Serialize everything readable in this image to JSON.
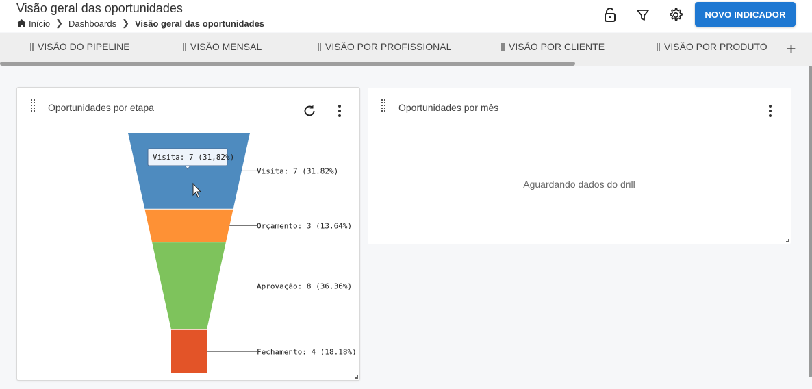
{
  "header": {
    "title": "Visão geral das oportunidades",
    "breadcrumb": [
      "Início",
      "Dashboards",
      "Visão geral das oportunidades"
    ],
    "new_button": "NOVO INDICADOR",
    "icons": [
      "unlock-icon",
      "filter-icon",
      "gear-icon"
    ]
  },
  "tabs": [
    "VISÃO DO PIPELINE",
    "VISÃO MENSAL",
    "VISÃO POR PROFISSIONAL",
    "VISÃO POR CLIENTE",
    "VISÃO POR PRODUTO"
  ],
  "tab_add": "+",
  "card_left": {
    "title": "Oportunidades por etapa"
  },
  "card_right": {
    "title": "Oportunidades por mês",
    "empty_message": "Aguardando dados do drill"
  },
  "chart_data": {
    "type": "funnel",
    "series": [
      {
        "name": "Visita",
        "value": 7,
        "label": "Visita: 7 (31.82%)",
        "color": "#4e8bbf"
      },
      {
        "name": "Orçamento",
        "value": 3,
        "label": "Orçamento: 3 (13.64%)",
        "color": "#fe9135"
      },
      {
        "name": "Aprovação",
        "value": 8,
        "label": "Aprovação: 8 (36.36%)",
        "color": "#7ec35c"
      },
      {
        "name": "Fechamento",
        "value": 4,
        "label": "Fechamento: 4 (18.18%)",
        "color": "#e35428"
      }
    ],
    "tooltip": "Visita: 7 (31,82%)"
  }
}
